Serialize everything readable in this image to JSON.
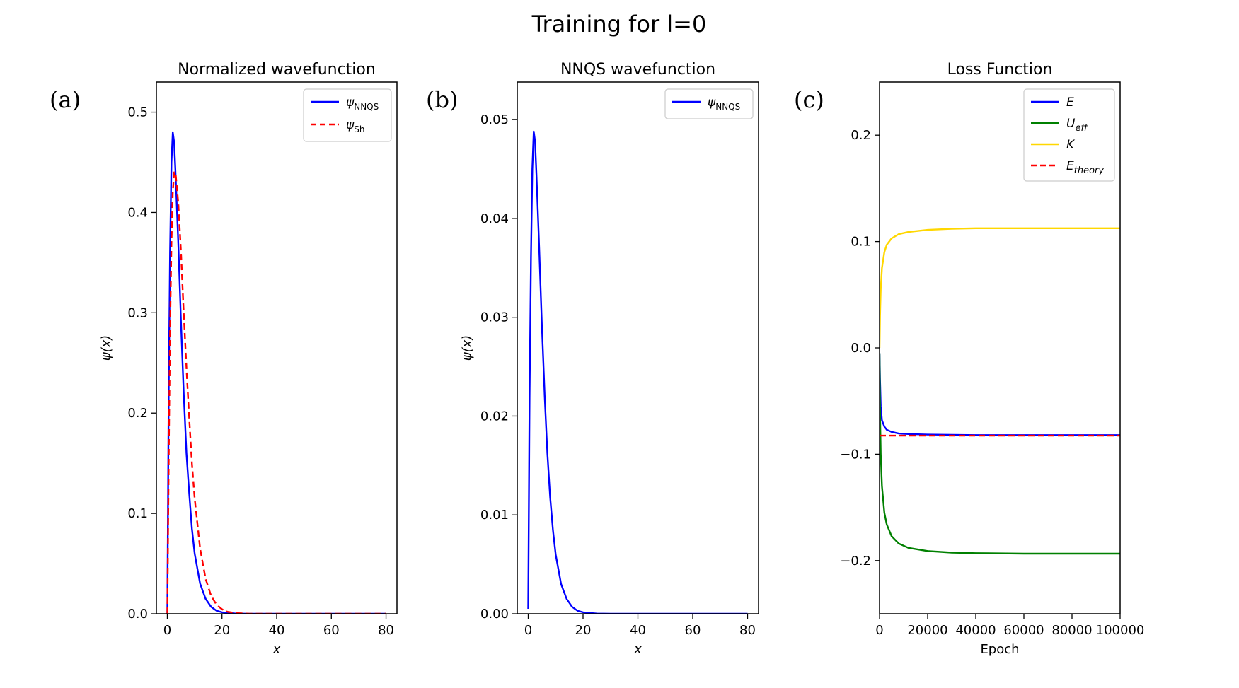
{
  "figure": {
    "suptitle": "Training for l=0"
  },
  "colors": {
    "nnqs": "#0000ff",
    "sh": "#ff0000",
    "E": "#0000ff",
    "Ueff": "#008000",
    "K": "#ffd700",
    "Etheory": "#ff0000"
  },
  "chart_data": [
    {
      "type": "line",
      "panel_label": "(a)",
      "title": "Normalized wavefunction",
      "xlabel": "x",
      "ylabel": "ψ(x)",
      "xlim": [
        -4,
        84
      ],
      "ylim": [
        0,
        0.53
      ],
      "xticks": [
        0,
        20,
        40,
        60,
        80
      ],
      "xtick_labels": [
        "0",
        "20",
        "40",
        "60",
        "80"
      ],
      "yticks": [
        0,
        0.1,
        0.2,
        0.3,
        0.4,
        0.5
      ],
      "ytick_labels": [
        "0.0",
        "0.1",
        "0.2",
        "0.3",
        "0.4",
        "0.5"
      ],
      "legend_position": "upper right",
      "series": [
        {
          "name": "ψNNQS",
          "legend_main": "ψ",
          "legend_sub": "NNQS",
          "style": "solid",
          "x": [
            0,
            0.5,
            1,
            1.5,
            2,
            2.5,
            3,
            4,
            5,
            6,
            7,
            8,
            9,
            10,
            12,
            14,
            16,
            18,
            20,
            25,
            30,
            40,
            60,
            80
          ],
          "y": [
            0.0,
            0.22,
            0.36,
            0.45,
            0.48,
            0.47,
            0.44,
            0.37,
            0.29,
            0.22,
            0.16,
            0.12,
            0.085,
            0.06,
            0.03,
            0.015,
            0.007,
            0.003,
            0.0015,
            0.0002,
            0,
            0,
            0,
            0
          ]
        },
        {
          "name": "ψSh",
          "legend_main": "ψ",
          "legend_sub": "Sh",
          "style": "dashed",
          "x": [
            0,
            0.5,
            1,
            1.5,
            2,
            2.5,
            3,
            4,
            5,
            6,
            7,
            8,
            9,
            10,
            12,
            14,
            16,
            18,
            20,
            22,
            25,
            30,
            40,
            60,
            80
          ],
          "y": [
            0.0,
            0.15,
            0.28,
            0.37,
            0.42,
            0.44,
            0.44,
            0.41,
            0.36,
            0.3,
            0.245,
            0.195,
            0.15,
            0.115,
            0.065,
            0.035,
            0.018,
            0.009,
            0.0045,
            0.002,
            0.0007,
            0,
            0,
            0,
            0
          ]
        }
      ]
    },
    {
      "type": "line",
      "panel_label": "(b)",
      "title": "NNQS wavefunction",
      "xlabel": "x",
      "ylabel": "ψ(x)",
      "xlim": [
        -4,
        84
      ],
      "ylim": [
        0,
        0.0538
      ],
      "xticks": [
        0,
        20,
        40,
        60,
        80
      ],
      "xtick_labels": [
        "0",
        "20",
        "40",
        "60",
        "80"
      ],
      "yticks": [
        0,
        0.01,
        0.02,
        0.03,
        0.04,
        0.05
      ],
      "ytick_labels": [
        "0.00",
        "0.01",
        "0.02",
        "0.03",
        "0.04",
        "0.05"
      ],
      "legend_position": "upper right",
      "series": [
        {
          "name": "ψNNQS",
          "legend_main": "ψ",
          "legend_sub": "NNQS",
          "style": "solid",
          "x": [
            0,
            0.5,
            1,
            1.5,
            2,
            2.5,
            3,
            4,
            5,
            6,
            7,
            8,
            9,
            10,
            12,
            14,
            16,
            18,
            20,
            25,
            30,
            40,
            60,
            80
          ],
          "y": [
            0.0005,
            0.022,
            0.036,
            0.045,
            0.0488,
            0.0478,
            0.0445,
            0.037,
            0.029,
            0.022,
            0.0162,
            0.0118,
            0.0085,
            0.006,
            0.003,
            0.0015,
            0.0007,
            0.0003,
            0.00015,
            2e-05,
            0,
            0,
            0,
            0
          ]
        }
      ]
    },
    {
      "type": "line",
      "panel_label": "(c)",
      "title": "Loss Function",
      "xlabel": "Epoch",
      "ylabel": "",
      "xlim": [
        0,
        100000
      ],
      "ylim": [
        -0.25,
        0.25
      ],
      "xticks": [
        0,
        20000,
        40000,
        60000,
        80000,
        100000
      ],
      "xtick_labels": [
        "0",
        "20000",
        "40000",
        "60000",
        "80000",
        "100000"
      ],
      "yticks": [
        -0.2,
        -0.1,
        0.0,
        0.1,
        0.2
      ],
      "ytick_labels": [
        "−0.2",
        "−0.1",
        "0.0",
        "0.1",
        "0.2"
      ],
      "legend_position": "upper right",
      "series": [
        {
          "name": "E",
          "legend_main": "E",
          "legend_sub": "",
          "style": "solid",
          "x": [
            0,
            200,
            500,
            1000,
            2000,
            3000,
            5000,
            8000,
            12000,
            20000,
            40000,
            60000,
            80000,
            100000
          ],
          "y": [
            -0.005,
            -0.03,
            -0.055,
            -0.068,
            -0.074,
            -0.077,
            -0.079,
            -0.0805,
            -0.081,
            -0.0815,
            -0.082,
            -0.082,
            -0.082,
            -0.082
          ]
        },
        {
          "name": "Ueff",
          "legend_main": "U",
          "legend_sub": "eff",
          "style": "solid",
          "x": [
            0,
            200,
            500,
            1000,
            2000,
            3000,
            5000,
            8000,
            12000,
            20000,
            30000,
            40000,
            60000,
            80000,
            100000
          ],
          "y": [
            -0.005,
            -0.06,
            -0.1,
            -0.13,
            -0.155,
            -0.166,
            -0.177,
            -0.184,
            -0.188,
            -0.191,
            -0.1925,
            -0.193,
            -0.1935,
            -0.1935,
            -0.1935
          ]
        },
        {
          "name": "K",
          "legend_main": "K",
          "legend_sub": "",
          "style": "solid",
          "x": [
            0,
            200,
            500,
            1000,
            2000,
            3000,
            5000,
            8000,
            12000,
            20000,
            30000,
            40000,
            60000,
            80000,
            100000
          ],
          "y": [
            0.0,
            0.03,
            0.055,
            0.075,
            0.09,
            0.097,
            0.103,
            0.107,
            0.109,
            0.111,
            0.112,
            0.1125,
            0.1125,
            0.1125,
            0.1125
          ]
        },
        {
          "name": "Etheory",
          "legend_main": "E",
          "legend_sub": "theory",
          "style": "dashed",
          "x": [
            0,
            100000
          ],
          "y": [
            -0.0825,
            -0.0825
          ]
        }
      ]
    }
  ]
}
